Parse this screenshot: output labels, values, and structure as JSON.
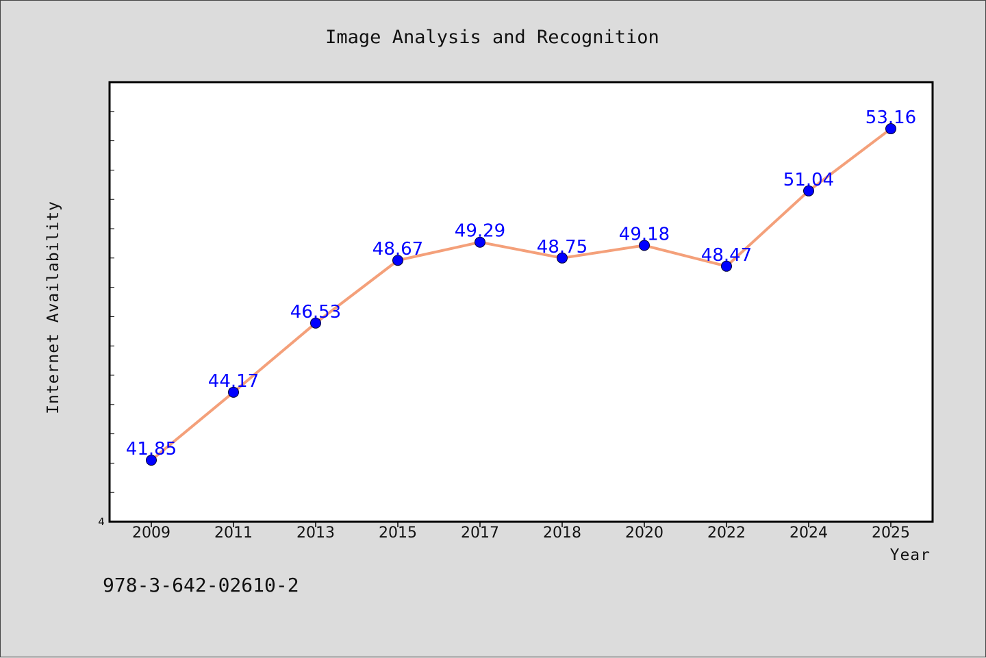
{
  "footer_text": "978-3-642-02610-2",
  "colors": {
    "background": "#dcdcdc",
    "plot_background": "#ffffff",
    "line": "#f4a07a",
    "marker": "#0000ff",
    "data_label": "#0000ff"
  },
  "chart_data": {
    "type": "line",
    "title": "Image Analysis and Recognition",
    "xlabel": "Year",
    "ylabel": "Internet Availability",
    "categories": [
      "2009",
      "2011",
      "2013",
      "2015",
      "2017",
      "2018",
      "2020",
      "2022",
      "2024",
      "2025"
    ],
    "series": [
      {
        "values": [
          41.85,
          44.17,
          46.53,
          48.67,
          49.29,
          48.75,
          49.18,
          48.47,
          51.04,
          53.16
        ]
      }
    ],
    "data_labels": [
      "41.85",
      "44.17",
      "46.53",
      "48.67",
      "49.29",
      "48.75",
      "49.18",
      "48.47",
      "51.04",
      "53.16"
    ],
    "ytick_labels": [
      "4"
    ],
    "ylim": [
      39.75,
      54.75
    ],
    "grid": false,
    "legend": false
  }
}
